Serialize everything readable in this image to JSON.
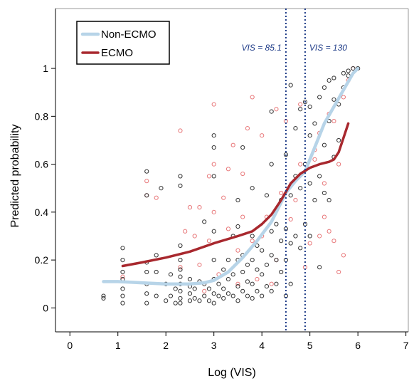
{
  "chart_data": {
    "type": "scatter",
    "xlabel": "Log (VIS)",
    "ylabel": "Predicted probability",
    "xlim": [
      -0.3,
      7.05
    ],
    "ylim": [
      -0.1,
      1.25
    ],
    "xticks": [
      0,
      1,
      2,
      3,
      4,
      5,
      6,
      7
    ],
    "yticks": [
      0,
      0.2,
      0.4,
      0.6,
      0.8,
      1
    ],
    "ytick_labels": [
      "0",
      "0.2",
      "0.4",
      "0.6",
      "0.8",
      "1"
    ],
    "grid": false,
    "legend_position": "top-left",
    "legend": [
      {
        "label": "Non-ECMO",
        "color": "#b7d4e8"
      },
      {
        "label": "ECMO",
        "color": "#a8282e"
      }
    ],
    "vlines": [
      {
        "x": 4.5,
        "label": "VIS = 85.1",
        "color": "#1f3c88"
      },
      {
        "x": 4.9,
        "label": "VIS = 130",
        "color": "#1f3c88"
      }
    ],
    "series": [
      {
        "name": "Non-ECMO",
        "color": "#b7d4e8",
        "curve": [
          [
            0.7,
            0.11
          ],
          [
            1.0,
            0.11
          ],
          [
            1.5,
            0.105
          ],
          [
            2.0,
            0.1
          ],
          [
            2.5,
            0.1
          ],
          [
            2.8,
            0.105
          ],
          [
            3.0,
            0.115
          ],
          [
            3.3,
            0.15
          ],
          [
            3.6,
            0.21
          ],
          [
            3.9,
            0.28
          ],
          [
            4.2,
            0.36
          ],
          [
            4.5,
            0.48
          ],
          [
            4.7,
            0.53
          ],
          [
            4.9,
            0.57
          ],
          [
            5.1,
            0.67
          ],
          [
            5.3,
            0.77
          ],
          [
            5.5,
            0.84
          ],
          [
            5.7,
            0.91
          ],
          [
            5.9,
            0.98
          ],
          [
            6.0,
            1.0
          ]
        ],
        "points": [
          [
            0.7,
            0.04
          ],
          [
            0.7,
            0.05
          ],
          [
            1.1,
            0.05
          ],
          [
            1.1,
            0.08
          ],
          [
            1.1,
            0.12
          ],
          [
            1.1,
            0.15
          ],
          [
            1.1,
            0.2
          ],
          [
            1.1,
            0.25
          ],
          [
            1.1,
            0.02
          ],
          [
            1.6,
            0.02
          ],
          [
            1.6,
            0.06
          ],
          [
            1.6,
            0.1
          ],
          [
            1.6,
            0.15
          ],
          [
            1.6,
            0.19
          ],
          [
            1.6,
            0.47
          ],
          [
            1.6,
            0.57
          ],
          [
            1.8,
            0.05
          ],
          [
            1.8,
            0.15
          ],
          [
            1.8,
            0.22
          ],
          [
            1.9,
            0.5
          ],
          [
            2.0,
            0.03
          ],
          [
            2.0,
            0.1
          ],
          [
            2.1,
            0.05
          ],
          [
            2.1,
            0.14
          ],
          [
            2.2,
            0.02
          ],
          [
            2.2,
            0.08
          ],
          [
            2.3,
            0.02
          ],
          [
            2.3,
            0.04
          ],
          [
            2.3,
            0.07
          ],
          [
            2.3,
            0.1
          ],
          [
            2.3,
            0.13
          ],
          [
            2.3,
            0.16
          ],
          [
            2.3,
            0.2
          ],
          [
            2.3,
            0.26
          ],
          [
            2.3,
            0.51
          ],
          [
            2.3,
            0.55
          ],
          [
            2.5,
            0.03
          ],
          [
            2.5,
            0.06
          ],
          [
            2.5,
            0.09
          ],
          [
            2.5,
            0.12
          ],
          [
            2.6,
            0.04
          ],
          [
            2.6,
            0.08
          ],
          [
            2.7,
            0.03
          ],
          [
            2.7,
            0.11
          ],
          [
            2.8,
            0.05
          ],
          [
            2.8,
            0.1
          ],
          [
            2.8,
            0.36
          ],
          [
            2.9,
            0.03
          ],
          [
            2.9,
            0.08
          ],
          [
            3.0,
            0.02
          ],
          [
            3.0,
            0.06
          ],
          [
            3.0,
            0.12
          ],
          [
            3.0,
            0.2
          ],
          [
            3.0,
            0.32
          ],
          [
            3.0,
            0.55
          ],
          [
            3.0,
            0.67
          ],
          [
            3.0,
            0.72
          ],
          [
            3.1,
            0.05
          ],
          [
            3.1,
            0.1
          ],
          [
            3.2,
            0.04
          ],
          [
            3.2,
            0.08
          ],
          [
            3.2,
            0.16
          ],
          [
            3.3,
            0.06
          ],
          [
            3.3,
            0.12
          ],
          [
            3.3,
            0.2
          ],
          [
            3.4,
            0.05
          ],
          [
            3.4,
            0.14
          ],
          [
            3.4,
            0.3
          ],
          [
            3.5,
            0.03
          ],
          [
            3.5,
            0.09
          ],
          [
            3.5,
            0.2
          ],
          [
            3.5,
            0.34
          ],
          [
            3.5,
            0.45
          ],
          [
            3.6,
            0.07
          ],
          [
            3.6,
            0.15
          ],
          [
            3.6,
            0.22
          ],
          [
            3.6,
            0.67
          ],
          [
            3.7,
            0.05
          ],
          [
            3.7,
            0.11
          ],
          [
            3.7,
            0.18
          ],
          [
            3.8,
            0.04
          ],
          [
            3.8,
            0.1
          ],
          [
            3.8,
            0.2
          ],
          [
            3.8,
            0.3
          ],
          [
            3.8,
            0.5
          ],
          [
            3.9,
            0.07
          ],
          [
            3.9,
            0.16
          ],
          [
            3.9,
            0.26
          ],
          [
            4.0,
            0.05
          ],
          [
            4.0,
            0.14
          ],
          [
            4.0,
            0.24
          ],
          [
            4.1,
            0.09
          ],
          [
            4.1,
            0.18
          ],
          [
            4.1,
            0.47
          ],
          [
            4.2,
            0.07
          ],
          [
            4.2,
            0.22
          ],
          [
            4.2,
            0.32
          ],
          [
            4.2,
            0.6
          ],
          [
            4.2,
            0.82
          ],
          [
            4.3,
            0.1
          ],
          [
            4.3,
            0.2
          ],
          [
            4.3,
            0.35
          ],
          [
            4.4,
            0.15
          ],
          [
            4.4,
            0.28
          ],
          [
            4.4,
            0.45
          ],
          [
            4.5,
            0.05
          ],
          [
            4.5,
            0.2
          ],
          [
            4.5,
            0.33
          ],
          [
            4.5,
            0.64
          ],
          [
            4.6,
            0.1
          ],
          [
            4.6,
            0.27
          ],
          [
            4.6,
            0.47
          ],
          [
            4.6,
            0.93
          ],
          [
            4.7,
            0.3
          ],
          [
            4.7,
            0.55
          ],
          [
            4.7,
            0.75
          ],
          [
            4.8,
            0.25
          ],
          [
            4.8,
            0.5
          ],
          [
            4.8,
            0.83
          ],
          [
            4.9,
            0.35
          ],
          [
            4.9,
            0.6
          ],
          [
            4.9,
            0.86
          ],
          [
            5.0,
            0.3
          ],
          [
            5.0,
            0.52
          ],
          [
            5.0,
            0.72
          ],
          [
            5.0,
            0.84
          ],
          [
            5.1,
            0.45
          ],
          [
            5.1,
            0.77
          ],
          [
            5.2,
            0.55
          ],
          [
            5.2,
            0.88
          ],
          [
            5.2,
            0.17
          ],
          [
            5.3,
            0.48
          ],
          [
            5.3,
            0.68
          ],
          [
            5.3,
            0.92
          ],
          [
            5.4,
            0.45
          ],
          [
            5.4,
            0.78
          ],
          [
            5.4,
            0.95
          ],
          [
            5.5,
            0.63
          ],
          [
            5.5,
            0.87
          ],
          [
            5.5,
            0.96
          ],
          [
            5.6,
            0.7
          ],
          [
            5.6,
            0.85
          ],
          [
            5.7,
            0.92
          ],
          [
            5.7,
            0.98
          ],
          [
            5.8,
            0.97
          ],
          [
            5.8,
            0.99
          ],
          [
            5.9,
            1.0
          ],
          [
            6.0,
            1.0
          ]
        ]
      },
      {
        "name": "ECMO",
        "color": "#a8282e",
        "curve": [
          [
            1.1,
            0.175
          ],
          [
            1.5,
            0.19
          ],
          [
            2.0,
            0.21
          ],
          [
            2.5,
            0.235
          ],
          [
            3.0,
            0.27
          ],
          [
            3.5,
            0.3
          ],
          [
            3.8,
            0.32
          ],
          [
            4.0,
            0.35
          ],
          [
            4.2,
            0.39
          ],
          [
            4.4,
            0.45
          ],
          [
            4.6,
            0.52
          ],
          [
            4.8,
            0.56
          ],
          [
            5.0,
            0.585
          ],
          [
            5.2,
            0.6
          ],
          [
            5.4,
            0.61
          ],
          [
            5.5,
            0.62
          ],
          [
            5.6,
            0.65
          ],
          [
            5.7,
            0.71
          ],
          [
            5.8,
            0.77
          ]
        ],
        "points": [
          [
            1.1,
            0.13
          ],
          [
            1.6,
            0.47
          ],
          [
            1.6,
            0.53
          ],
          [
            1.8,
            0.46
          ],
          [
            2.3,
            0.74
          ],
          [
            2.3,
            0.17
          ],
          [
            2.4,
            0.32
          ],
          [
            2.5,
            0.42
          ],
          [
            2.6,
            0.3
          ],
          [
            2.7,
            0.42
          ],
          [
            2.7,
            0.18
          ],
          [
            2.8,
            0.07
          ],
          [
            2.9,
            0.55
          ],
          [
            2.9,
            0.28
          ],
          [
            3.0,
            0.4
          ],
          [
            3.0,
            0.85
          ],
          [
            3.0,
            0.6
          ],
          [
            3.1,
            0.14
          ],
          [
            3.2,
            0.46
          ],
          [
            3.3,
            0.33
          ],
          [
            3.3,
            0.58
          ],
          [
            3.4,
            0.68
          ],
          [
            3.5,
            0.1
          ],
          [
            3.5,
            0.24
          ],
          [
            3.6,
            0.56
          ],
          [
            3.6,
            0.38
          ],
          [
            3.7,
            0.75
          ],
          [
            3.8,
            0.88
          ],
          [
            3.8,
            0.28
          ],
          [
            3.9,
            0.12
          ],
          [
            4.0,
            0.72
          ],
          [
            4.0,
            0.3
          ],
          [
            4.1,
            0.38
          ],
          [
            4.2,
            0.1
          ],
          [
            4.3,
            0.83
          ],
          [
            4.3,
            0.2
          ],
          [
            4.4,
            0.48
          ],
          [
            4.5,
            0.78
          ],
          [
            4.6,
            0.37
          ],
          [
            4.7,
            0.45
          ],
          [
            4.8,
            0.6
          ],
          [
            4.8,
            0.85
          ],
          [
            4.9,
            0.17
          ],
          [
            5.0,
            0.27
          ],
          [
            5.1,
            0.66
          ],
          [
            5.1,
            0.62
          ],
          [
            5.2,
            0.73
          ],
          [
            5.2,
            0.3
          ],
          [
            5.3,
            0.38
          ],
          [
            5.3,
            0.52
          ],
          [
            5.4,
            0.81
          ],
          [
            5.4,
            0.32
          ],
          [
            5.5,
            0.28
          ],
          [
            5.5,
            0.78
          ],
          [
            5.6,
            0.6
          ],
          [
            5.6,
            0.15
          ],
          [
            5.7,
            0.22
          ],
          [
            5.7,
            0.88
          ],
          [
            5.8,
            0.95
          ],
          [
            5.9,
            1.0
          ]
        ]
      }
    ]
  }
}
